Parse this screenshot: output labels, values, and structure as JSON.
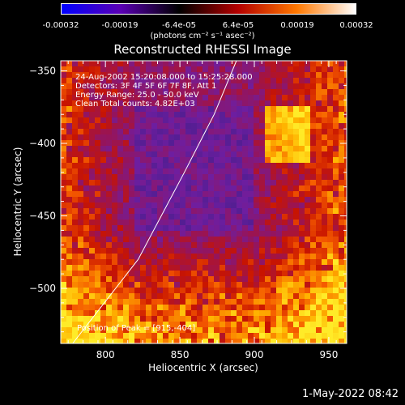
{
  "colorbar": {
    "ticks": [
      "-0.00032",
      "-0.00019",
      "-6.4e-05",
      "6.4e-05",
      "0.00019",
      "0.00032"
    ],
    "unit": "(photons cm⁻² s⁻¹ asec⁻²)",
    "colors": [
      "#0000ff",
      "#5a00b4",
      "#000000",
      "#b40000",
      "#ff7800",
      "#ffffff"
    ]
  },
  "chart_data": {
    "type": "heatmap",
    "title": "Reconstructed RHESSI Image",
    "xlabel": "Heliocentric X (arcsec)",
    "ylabel": "Heliocentric Y (arcsec)",
    "xlim": [
      770,
      962
    ],
    "ylim": [
      -538,
      -343
    ],
    "xticks": [
      800,
      850,
      900,
      950
    ],
    "yticks": [
      -350,
      -400,
      -450,
      -500
    ],
    "annotations": [
      "24-Aug-2002 15:20:08.000 to 15:25:28.000",
      "Detectors: 3F 4F 5F 6F 7F 8F, Att 1",
      "Energy Range: 25.0 - 50.0 keV",
      "Clean    Total counts: 4.82E+03"
    ],
    "peak_label": "Position of Peak = [915,-404]",
    "limb": {
      "x": [
        778,
        822,
        853,
        873,
        888
      ],
      "y": [
        -538,
        -480,
        -420,
        -380,
        -343
      ]
    }
  },
  "timestamp": "1-May-2022 08:42"
}
